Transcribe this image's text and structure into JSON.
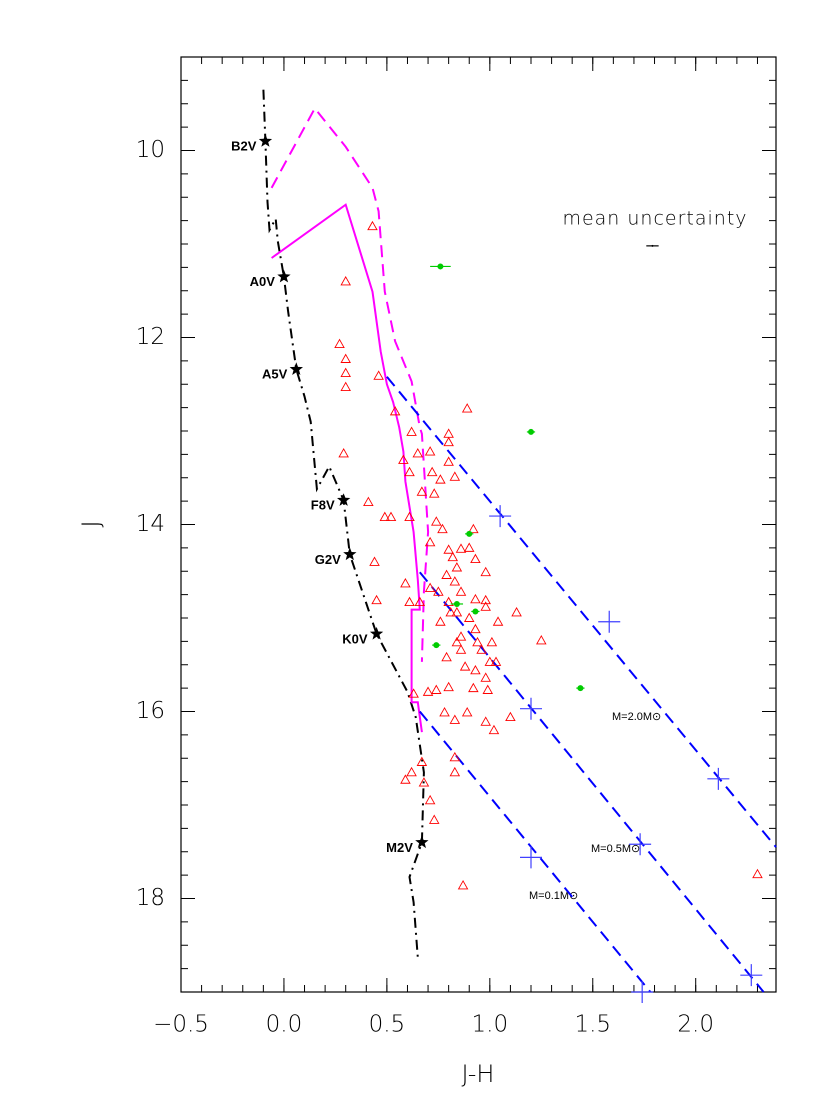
{
  "chart_data": {
    "type": "scatter",
    "x_label": "J-H",
    "y_label": "J",
    "xlim": [
      -0.5,
      2.39
    ],
    "ylim": [
      9,
      19
    ],
    "y_inverted": true,
    "xticks": [
      {
        "value": -0.5,
        "label": "−0.5"
      },
      {
        "value": 0,
        "label": "0.0"
      },
      0.5,
      {
        "value": 1,
        "label": "1.0"
      },
      1.5,
      {
        "value": 2,
        "label": "2.0"
      }
    ],
    "yticks": [
      10,
      12,
      14,
      16,
      18
    ],
    "xminor": 5,
    "yminor": 8,
    "annotations": [
      "mean uncertainty",
      "M=2.0M⊙",
      "M=0.5M⊙",
      "M=0.1M⊙"
    ],
    "series": [
      {
        "type": "line",
        "linestyle": "dashdot",
        "color": "#000000",
        "x": [
          -0.1,
          -0.09,
          -0.08,
          -0.07,
          -0.04,
          -0.03,
          0.0,
          0.02,
          0.06,
          0.1,
          0.13,
          0.16,
          0.22,
          0.29,
          0.32,
          0.45,
          0.6,
          0.64,
          0.68,
          0.67,
          0.61,
          0.63,
          0.65
        ],
        "values": [
          9.35,
          9.9,
          10.55,
          10.85,
          10.73,
          10.97,
          11.35,
          11.72,
          12.34,
          12.63,
          12.9,
          13.62,
          13.38,
          13.74,
          14.32,
          15.17,
          15.79,
          16.06,
          16.65,
          17.4,
          17.77,
          18.04,
          18.63
        ]
      },
      {
        "type": "scatter",
        "marker": "star",
        "color": "#000000",
        "labels": [
          "B2V",
          "A0V",
          "A5V",
          "F8V",
          "G2V",
          "K0V",
          "M2V"
        ],
        "x": [
          -0.09,
          0.0,
          0.06,
          0.29,
          0.32,
          0.45,
          0.67
        ],
        "values": [
          9.9,
          11.35,
          12.34,
          13.74,
          14.32,
          15.17,
          17.4
        ]
      },
      {
        "type": "line",
        "linestyle": "solid",
        "color": "#ff00ff",
        "x": [
          -0.06,
          0.3,
          0.43,
          0.47,
          0.5,
          0.53,
          0.56,
          0.58,
          0.59,
          0.63,
          0.65,
          0.66,
          0.62,
          0.62,
          0.65,
          0.67
        ],
        "values": [
          11.15,
          10.58,
          11.51,
          12.15,
          12.5,
          12.69,
          12.96,
          13.22,
          13.54,
          14.08,
          14.59,
          14.91,
          14.91,
          15.9,
          15.9,
          16.22
        ]
      },
      {
        "type": "line",
        "linestyle": "dashed",
        "color": "#ff00ff",
        "x": [
          -0.06,
          0.15,
          0.3,
          0.43,
          0.46,
          0.49,
          0.54,
          0.62,
          0.66,
          0.67,
          0.7,
          0.68,
          0.67
        ],
        "values": [
          10.4,
          9.55,
          9.96,
          10.4,
          10.65,
          11.51,
          12.04,
          12.47,
          12.96,
          13.03,
          14.08,
          14.72,
          15.47
        ]
      },
      {
        "type": "line",
        "linestyle": "dashed",
        "color": "#0000ff",
        "x": [
          0.5,
          2.39
        ],
        "values": [
          12.42,
          17.45
        ]
      },
      {
        "type": "line",
        "linestyle": "dashed",
        "color": "#0000ff",
        "x": [
          0.66,
          2.33
        ],
        "values": [
          14.51,
          19.0
        ]
      },
      {
        "type": "line",
        "linestyle": "dashed",
        "color": "#0000ff",
        "x": [
          0.66,
          1.78
        ],
        "values": [
          16.0,
          19.0
        ]
      },
      {
        "type": "scatter",
        "marker": "plus",
        "color": "#4040ff",
        "x": [
          1.05,
          1.58,
          2.11,
          1.2,
          1.73,
          2.27,
          1.2,
          1.74
        ],
        "values": [
          13.91,
          15.04,
          16.72,
          15.97,
          17.42,
          18.82,
          17.56,
          19.0
        ]
      },
      {
        "type": "scatter",
        "marker": "triangle",
        "color": "#ff0000",
        "x": [
          0.43,
          0.3,
          0.27,
          0.3,
          0.3,
          0.3,
          0.46,
          0.29,
          0.54,
          0.62,
          0.8,
          0.8,
          0.89,
          0.58,
          0.65,
          0.71,
          0.61,
          0.72,
          0.67,
          0.76,
          0.83,
          0.8,
          0.41,
          0.61,
          0.49,
          0.52,
          0.74,
          0.77,
          0.86,
          0.8,
          0.59,
          0.61,
          0.71,
          0.75,
          0.82,
          0.92,
          0.9,
          0.93,
          0.98,
          0.84,
          0.79,
          0.83,
          0.93,
          0.98,
          0.8,
          0.86,
          0.81,
          0.84,
          0.9,
          0.76,
          0.84,
          0.93,
          0.98,
          1.01,
          1.13,
          1.25,
          0.96,
          1.04,
          0.86,
          0.79,
          0.88,
          0.93,
          1.0,
          0.92,
          0.98,
          0.8,
          0.74,
          0.7,
          0.78,
          0.83,
          0.89,
          0.98,
          1.02,
          1.1,
          0.45,
          0.66,
          0.63,
          0.67,
          0.62,
          0.68,
          0.71,
          0.73,
          0.83,
          0.83,
          0.59,
          0.87,
          2.3,
          0.44,
          0.73,
          0.71,
          0.86,
          0.94,
          1.03,
          0.99
        ],
        "values": [
          10.81,
          11.4,
          12.07,
          12.23,
          12.38,
          12.53,
          12.41,
          13.24,
          12.79,
          13.01,
          13.03,
          13.12,
          12.76,
          13.31,
          13.24,
          13.22,
          13.44,
          13.44,
          13.65,
          13.52,
          13.49,
          13.33,
          13.76,
          13.92,
          13.92,
          13.92,
          13.97,
          14.05,
          14.26,
          14.27,
          14.63,
          14.83,
          14.68,
          14.72,
          14.35,
          14.05,
          14.25,
          14.37,
          14.51,
          14.46,
          14.54,
          14.61,
          14.8,
          14.81,
          14.83,
          14.72,
          14.94,
          14.94,
          15.0,
          15.04,
          15.26,
          15.12,
          14.88,
          15.26,
          14.94,
          15.24,
          15.34,
          15.04,
          15.34,
          15.42,
          15.52,
          15.56,
          15.47,
          15.75,
          15.64,
          15.74,
          15.77,
          15.79,
          16.01,
          16.09,
          16.01,
          16.11,
          16.2,
          16.06,
          14.81,
          14.83,
          15.81,
          16.54,
          16.65,
          16.76,
          16.95,
          17.16,
          16.65,
          16.49,
          16.73,
          17.86,
          17.74,
          14.4,
          13.67,
          14.19,
          15.2,
          15.26,
          15.47,
          15.77
        ]
      },
      {
        "type": "scatter",
        "marker": "circle",
        "color": "#00cc00",
        "x": [
          0.76,
          1.2,
          0.9,
          0.84,
          0.93,
          0.74,
          1.44
        ],
        "xerr": [
          0.05,
          0.02,
          0.02,
          0.03,
          0.02,
          0.02,
          0.02
        ],
        "values": [
          11.24,
          13.01,
          14.1,
          14.85,
          14.93,
          15.29,
          15.75
        ]
      },
      {
        "type": "scatter",
        "marker": "errorbar",
        "color": "#000000",
        "x": [
          1.79
        ],
        "xerr": [
          0.03
        ],
        "values": [
          11.02
        ]
      }
    ]
  }
}
